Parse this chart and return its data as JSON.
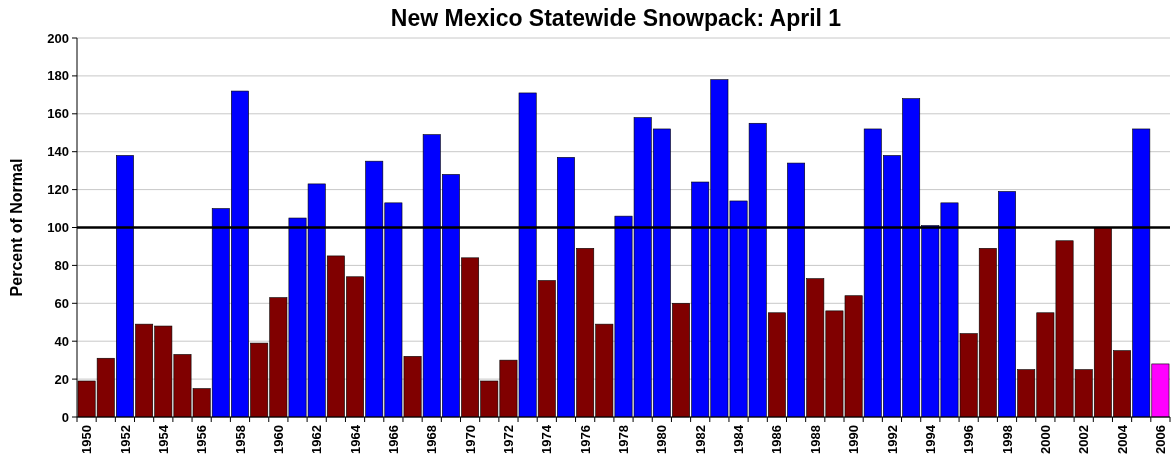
{
  "chart_data": {
    "type": "bar",
    "title": "New Mexico Statewide Snowpack: April 1",
    "ylabel": "Percent of Normal",
    "categories": [
      "1950",
      null,
      "1952",
      null,
      "1954",
      null,
      "1956",
      null,
      "1958",
      null,
      "1960",
      null,
      "1962",
      null,
      "1964",
      null,
      "1966",
      null,
      "1968",
      null,
      "1970",
      null,
      "1972",
      null,
      "1974",
      null,
      "1976",
      null,
      "1978",
      null,
      "1980",
      null,
      "1982",
      null,
      "1984",
      null,
      "1986",
      null,
      "1988",
      null,
      "1990",
      null,
      "1992",
      null,
      "1994",
      null,
      "1996",
      null,
      "1998",
      null,
      "2000",
      null,
      "2002",
      null,
      "2004",
      null,
      "2006"
    ],
    "values": [
      19,
      31,
      138,
      49,
      48,
      33,
      15,
      110,
      172,
      39,
      63,
      105,
      123,
      85,
      74,
      135,
      113,
      32,
      149,
      128,
      84,
      19,
      30,
      171,
      72,
      137,
      89,
      49,
      106,
      158,
      152,
      60,
      124,
      178,
      114,
      155,
      55,
      134,
      73,
      56,
      64,
      152,
      138,
      168,
      101,
      113,
      44,
      89,
      119,
      25,
      55,
      93,
      25,
      100,
      35,
      152,
      28
    ],
    "colors": [
      "#800000",
      "#800000",
      "#0000ff",
      "#800000",
      "#800000",
      "#800000",
      "#800000",
      "#0000ff",
      "#0000ff",
      "#800000",
      "#800000",
      "#0000ff",
      "#0000ff",
      "#800000",
      "#800000",
      "#0000ff",
      "#0000ff",
      "#800000",
      "#0000ff",
      "#0000ff",
      "#800000",
      "#800000",
      "#800000",
      "#0000ff",
      "#800000",
      "#0000ff",
      "#800000",
      "#800000",
      "#0000ff",
      "#0000ff",
      "#0000ff",
      "#800000",
      "#0000ff",
      "#0000ff",
      "#0000ff",
      "#0000ff",
      "#800000",
      "#0000ff",
      "#800000",
      "#800000",
      "#800000",
      "#0000ff",
      "#0000ff",
      "#0000ff",
      "#0000ff",
      "#0000ff",
      "#800000",
      "#800000",
      "#0000ff",
      "#800000",
      "#800000",
      "#800000",
      "#800000",
      "#800000",
      "#800000",
      "#0000ff",
      "#ff00ff"
    ],
    "ylim": [
      0,
      200
    ],
    "yticks": [
      0,
      20,
      40,
      60,
      80,
      100,
      120,
      140,
      160,
      180,
      200
    ],
    "grid": "y",
    "ref_lines": [
      {
        "axis": "y",
        "value": 100,
        "color": "#000000"
      }
    ]
  }
}
